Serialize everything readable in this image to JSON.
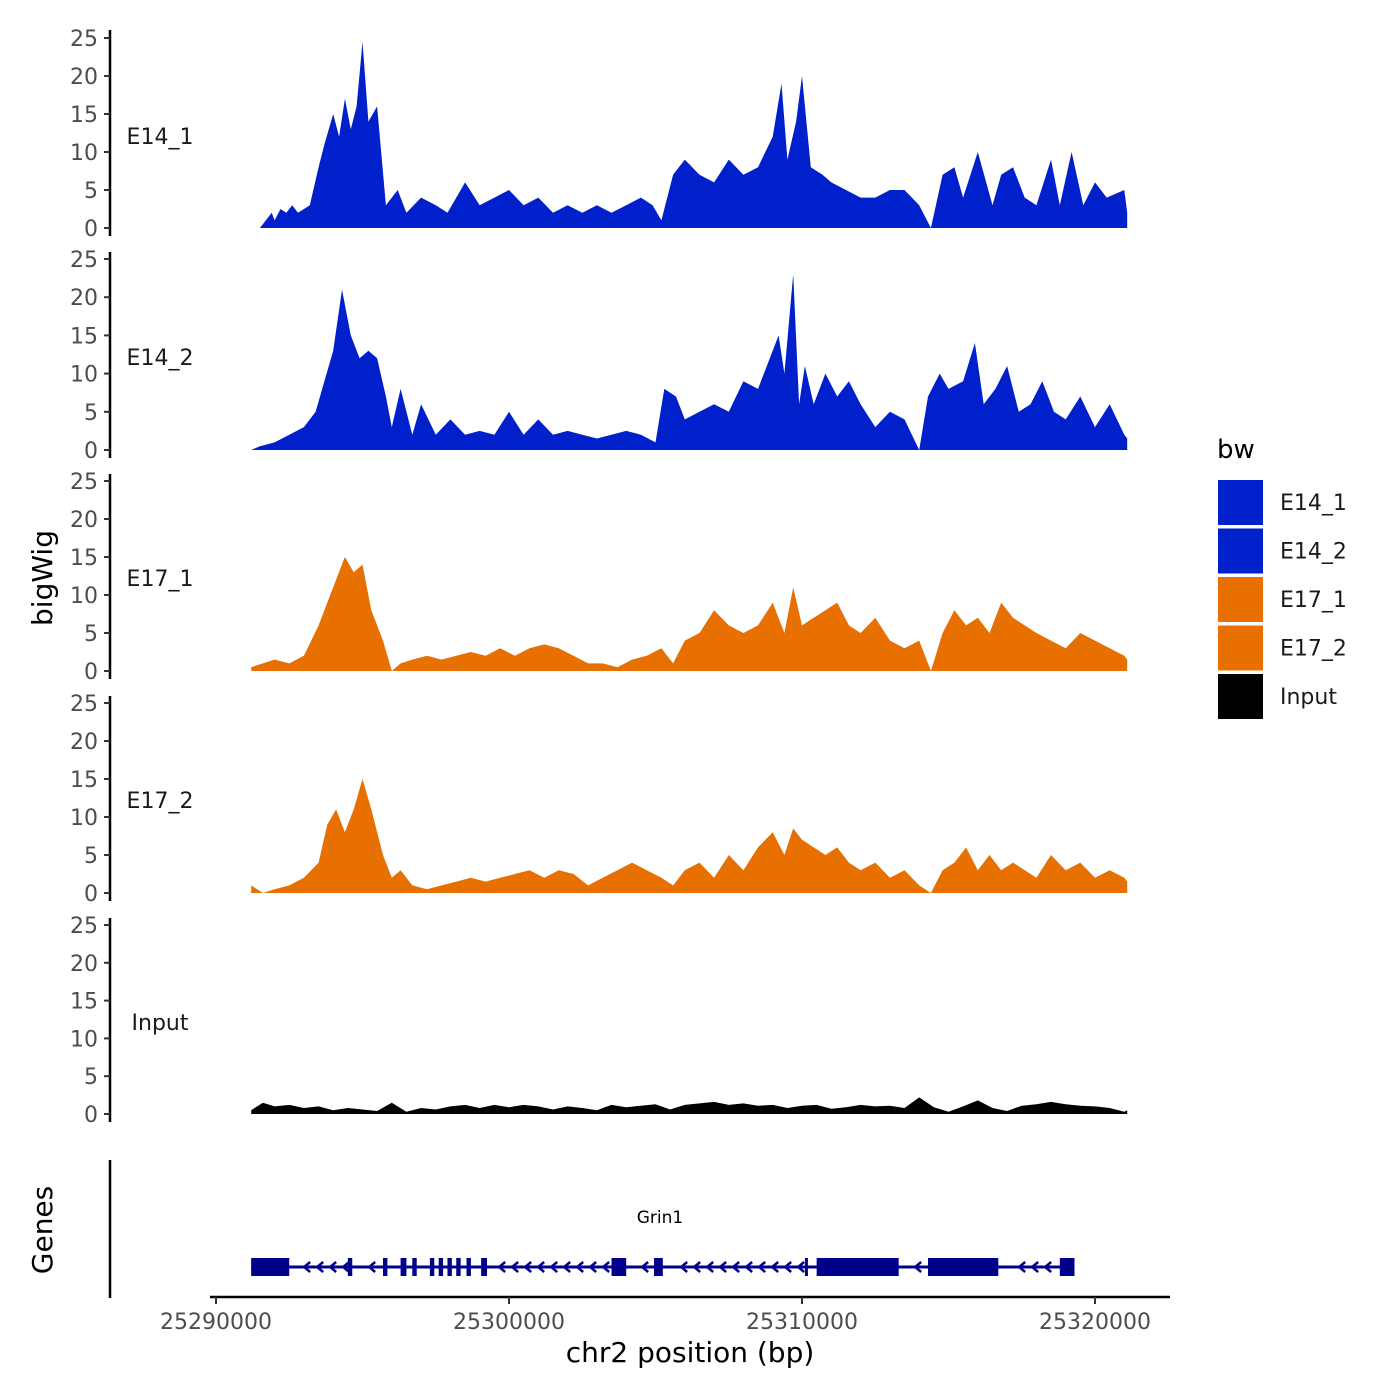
{
  "chart_data": {
    "type": "area",
    "subtype": "genome-track",
    "xlabel": "chr2 position (bp)",
    "ylabel": "bigWig",
    "genes_label": "Genes",
    "xlim": [
      25288800,
      25321600
    ],
    "x_ticks": [
      25290000,
      25300000,
      25310000,
      25320000
    ],
    "x_tick_labels": [
      "25290000",
      "25300000",
      "25310000",
      "25320000"
    ],
    "ylim": [
      0,
      25
    ],
    "y_ticks": [
      0,
      5,
      10,
      15,
      20,
      25
    ],
    "y_tick_labels": [
      "0",
      "5",
      "10",
      "15",
      "20",
      "25"
    ],
    "legend": {
      "title": "bw",
      "entries": [
        {
          "label": "E14_1",
          "color": "#0020CC"
        },
        {
          "label": "E14_2",
          "color": "#0020CC"
        },
        {
          "label": "E17_1",
          "color": "#E87000"
        },
        {
          "label": "E17_2",
          "color": "#E87000"
        },
        {
          "label": "Input",
          "color": "#000000"
        }
      ]
    },
    "tracks": [
      {
        "name": "E14_1",
        "color": "#0020CC",
        "x": [
          25291500,
          25291900,
          25292000,
          25292200,
          25292400,
          25292600,
          25292800,
          25293200,
          25293500,
          25293700,
          25294000,
          25294200,
          25294400,
          25294600,
          25294800,
          25295000,
          25295200,
          25295500,
          25295800,
          25296200,
          25296500,
          25297000,
          25297500,
          25297900,
          25298500,
          25299000,
          25299500,
          25300000,
          25300500,
          25301000,
          25301500,
          25302000,
          25302500,
          25303000,
          25303500,
          25304000,
          25304500,
          25304900,
          25305200,
          25305600,
          25306000,
          25306500,
          25307000,
          25307500,
          25308000,
          25308500,
          25309000,
          25309300,
          25309500,
          25309800,
          25310000,
          25310300,
          25310700,
          25311000,
          25311500,
          25312000,
          25312500,
          25313000,
          25313500,
          25314000,
          25314400,
          25314800,
          25315200,
          25315500,
          25316000,
          25316500,
          25316800,
          25317200,
          25317600,
          25318000,
          25318500,
          25318800,
          25319200,
          25319600,
          25320000,
          25320400,
          25321000,
          25321100
        ],
        "values": [
          0,
          2,
          1,
          2.5,
          2,
          3,
          2,
          3,
          8,
          11,
          15,
          12,
          17,
          13,
          16,
          24.5,
          14,
          16,
          3,
          5,
          2,
          4,
          3,
          2,
          6,
          3,
          4,
          5,
          3,
          4,
          2,
          3,
          2,
          3,
          2,
          3,
          4,
          3,
          1,
          7,
          9,
          7,
          6,
          9,
          7,
          8,
          12,
          19,
          9,
          14,
          20,
          8,
          7,
          6,
          5,
          4,
          4,
          5,
          5,
          3,
          0,
          7,
          8,
          4,
          10,
          3,
          7,
          8,
          4,
          3,
          9,
          3,
          10,
          3,
          6,
          4,
          5,
          2
        ],
        "y_tick_labels": [
          "0",
          "5",
          "10",
          "15",
          "20",
          "25"
        ]
      },
      {
        "name": "E14_2",
        "color": "#0020CC",
        "x": [
          25291200,
          25291500,
          25292000,
          25292500,
          25293000,
          25293400,
          25293700,
          25294000,
          25294300,
          25294600,
          25294900,
          25295200,
          25295500,
          25295800,
          25296000,
          25296300,
          25296700,
          25297000,
          25297500,
          25298000,
          25298500,
          25299000,
          25299500,
          25300000,
          25300500,
          25301000,
          25301500,
          25302000,
          25302500,
          25303000,
          25303500,
          25304000,
          25304500,
          25305000,
          25305300,
          25305700,
          25306000,
          25306500,
          25307000,
          25307500,
          25308000,
          25308500,
          25309000,
          25309200,
          25309400,
          25309700,
          25309900,
          25310100,
          25310400,
          25310800,
          25311200,
          25311600,
          25312000,
          25312500,
          25313000,
          25313500,
          25314000,
          25314300,
          25314700,
          25315000,
          25315500,
          25315900,
          25316200,
          25316600,
          25317000,
          25317400,
          25317800,
          25318200,
          25318600,
          25319000,
          25319500,
          25320000,
          25320500,
          25321000,
          25321100
        ],
        "values": [
          0,
          0.5,
          1,
          2,
          3,
          5,
          9,
          13,
          21,
          15,
          12,
          13,
          12,
          7,
          3,
          8,
          2,
          6,
          2,
          4,
          2,
          2.5,
          2,
          5,
          2,
          4,
          2,
          2.5,
          2,
          1.5,
          2,
          2.5,
          2,
          1,
          8,
          7,
          4,
          5,
          6,
          5,
          9,
          8,
          13,
          15,
          10,
          23,
          6,
          11,
          6,
          10,
          7,
          9,
          6,
          3,
          5,
          4,
          0,
          7,
          10,
          8,
          9,
          14,
          6,
          8,
          11,
          5,
          6,
          9,
          5,
          4,
          7,
          3,
          6,
          2,
          1.5
        ],
        "y_tick_labels": [
          "0",
          "5",
          "10",
          "15",
          "20",
          "25"
        ]
      },
      {
        "name": "E17_1",
        "color": "#E87000",
        "x": [
          25291200,
          25291600,
          25292000,
          25292500,
          25293000,
          25293500,
          25293800,
          25294100,
          25294400,
          25294700,
          25295000,
          25295300,
          25295700,
          25296000,
          25296300,
          25296700,
          25297200,
          25297700,
          25298200,
          25298700,
          25299200,
          25299700,
          25300200,
          25300700,
          25301200,
          25301700,
          25302200,
          25302700,
          25303200,
          25303700,
          25304200,
          25304700,
          25305200,
          25305600,
          25306000,
          25306500,
          25307000,
          25307500,
          25308000,
          25308500,
          25309000,
          25309400,
          25309700,
          25310000,
          25310400,
          25310800,
          25311200,
          25311600,
          25312000,
          25312500,
          25313000,
          25313500,
          25314000,
          25314400,
          25314800,
          25315200,
          25315600,
          25316000,
          25316400,
          25316800,
          25317200,
          25317600,
          25318000,
          25318500,
          25319000,
          25319500,
          25320000,
          25320500,
          25321000,
          25321100
        ],
        "values": [
          0.5,
          1,
          1.5,
          1,
          2,
          6,
          9,
          12,
          15,
          13,
          14,
          8,
          4,
          0,
          1,
          1.5,
          2,
          1.5,
          2,
          2.5,
          2,
          3,
          2,
          3,
          3.5,
          3,
          2,
          1,
          1,
          0.5,
          1.5,
          2,
          3,
          1,
          4,
          5,
          8,
          6,
          5,
          6,
          9,
          5,
          11,
          6,
          7,
          8,
          9,
          6,
          5,
          7,
          4,
          3,
          4,
          0,
          5,
          8,
          6,
          7,
          5,
          9,
          7,
          6,
          5,
          4,
          3,
          5,
          4,
          3,
          2,
          1.5
        ],
        "y_tick_labels": [
          "0",
          "5",
          "10",
          "15",
          "20",
          "25"
        ]
      },
      {
        "name": "E17_2",
        "color": "#E87000",
        "x": [
          25291200,
          25291600,
          25292000,
          25292500,
          25293000,
          25293500,
          25293800,
          25294100,
          25294400,
          25294700,
          25295000,
          25295300,
          25295700,
          25296000,
          25296300,
          25296700,
          25297200,
          25297700,
          25298200,
          25298700,
          25299200,
          25299700,
          25300200,
          25300700,
          25301200,
          25301700,
          25302200,
          25302700,
          25303200,
          25303700,
          25304200,
          25304700,
          25305200,
          25305600,
          25306000,
          25306500,
          25307000,
          25307500,
          25308000,
          25308500,
          25309000,
          25309400,
          25309700,
          25310000,
          25310400,
          25310800,
          25311200,
          25311600,
          25312000,
          25312500,
          25313000,
          25313500,
          25314000,
          25314400,
          25314800,
          25315200,
          25315600,
          25316000,
          25316400,
          25316800,
          25317200,
          25317600,
          25318000,
          25318500,
          25319000,
          25319500,
          25320000,
          25320500,
          25321000,
          25321100
        ],
        "values": [
          1,
          0,
          0.5,
          1,
          2,
          4,
          9,
          11,
          8,
          11,
          15,
          11,
          5,
          2,
          3,
          1,
          0.5,
          1,
          1.5,
          2,
          1.5,
          2,
          2.5,
          3,
          2,
          3,
          2.5,
          1,
          2,
          3,
          4,
          3,
          2,
          1,
          3,
          4,
          2,
          5,
          3,
          6,
          8,
          5,
          8.5,
          7,
          6,
          5,
          6,
          4,
          3,
          4,
          2,
          3,
          1,
          0,
          3,
          4,
          6,
          3,
          5,
          3,
          4,
          3,
          2,
          5,
          3,
          4,
          2,
          3,
          2,
          1.5
        ],
        "y_tick_labels": [
          "0",
          "5",
          "10",
          "15",
          "20",
          "25"
        ]
      },
      {
        "name": "Input",
        "color": "#000000",
        "x": [
          25291200,
          25291600,
          25292000,
          25292500,
          25293000,
          25293500,
          25294000,
          25294500,
          25295000,
          25295500,
          25296000,
          25296500,
          25297000,
          25297500,
          25298000,
          25298500,
          25299000,
          25299500,
          25300000,
          25300500,
          25301000,
          25301500,
          25302000,
          25302500,
          25303000,
          25303500,
          25304000,
          25304500,
          25305000,
          25305500,
          25306000,
          25306500,
          25307000,
          25307500,
          25308000,
          25308500,
          25309000,
          25309500,
          25310000,
          25310500,
          25311000,
          25311500,
          25312000,
          25312500,
          25313000,
          25313500,
          25314000,
          25314500,
          25315000,
          25315500,
          25316000,
          25316500,
          25317000,
          25317500,
          25318000,
          25318500,
          25319000,
          25319500,
          25320000,
          25320500,
          25321000,
          25321100
        ],
        "values": [
          0.5,
          1.5,
          1,
          1.2,
          0.8,
          1,
          0.5,
          0.8,
          0.6,
          0.4,
          1.5,
          0.3,
          0.8,
          0.6,
          1,
          1.2,
          0.8,
          1.2,
          0.9,
          1.2,
          1,
          0.6,
          1,
          0.8,
          0.5,
          1.2,
          0.9,
          1.1,
          1.3,
          0.6,
          1.2,
          1.4,
          1.6,
          1.2,
          1.4,
          1.1,
          1.2,
          0.8,
          1.1,
          1.2,
          0.7,
          0.9,
          1.2,
          1,
          1.1,
          0.8,
          2.2,
          0.9,
          0.3,
          1,
          1.8,
          0.8,
          0.4,
          1.1,
          1.3,
          1.6,
          1.3,
          1.1,
          1,
          0.8,
          0.3,
          0.5
        ],
        "y_tick_labels": [
          "0",
          "5",
          "10",
          "15",
          "20",
          "25"
        ]
      }
    ],
    "gene": {
      "name": "Grin1",
      "color": "#00008B",
      "strand": "-",
      "start": 25291200,
      "end": 25319300,
      "exons": [
        [
          25291200,
          25292500
        ],
        [
          25294500,
          25294650
        ],
        [
          25295700,
          25295850
        ],
        [
          25296300,
          25296500
        ],
        [
          25296700,
          25296850
        ],
        [
          25297300,
          25297450
        ],
        [
          25297600,
          25297750
        ],
        [
          25297900,
          25298050
        ],
        [
          25298200,
          25298350
        ],
        [
          25298550,
          25298700
        ],
        [
          25299050,
          25299250
        ],
        [
          25303500,
          25304000
        ],
        [
          25304950,
          25305250
        ],
        [
          25310100,
          25310200
        ],
        [
          25310500,
          25313300
        ],
        [
          25314300,
          25316700
        ],
        [
          25318800,
          25319300
        ]
      ]
    }
  }
}
